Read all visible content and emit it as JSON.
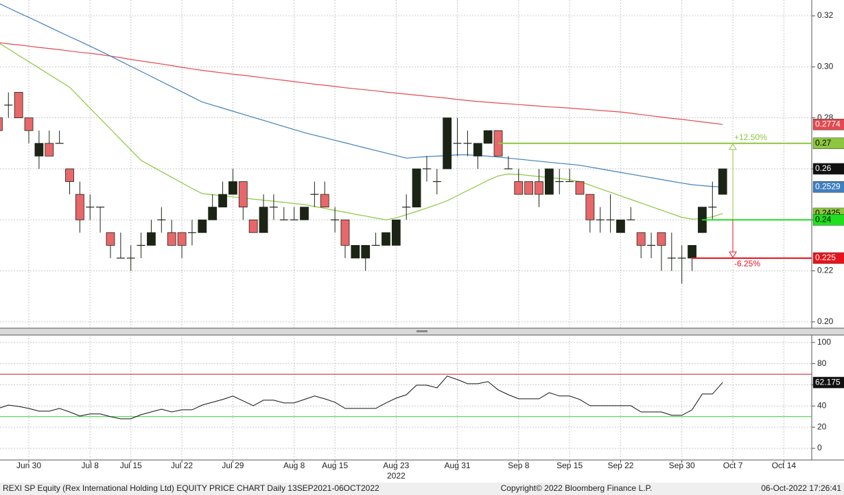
{
  "chart_data": [
    {
      "type": "candlestick",
      "categories": [
        null,
        null,
        null,
        "Jun 30",
        null,
        null,
        null,
        null,
        null,
        "Jul 8",
        null,
        null,
        null,
        "Jul 15",
        null,
        null,
        null,
        null,
        "Jul 22",
        null,
        null,
        null,
        null,
        "Jul 29",
        null,
        null,
        null,
        null,
        null,
        "Aug 8",
        null,
        null,
        null,
        "Aug 15",
        null,
        null,
        null,
        null,
        null,
        "Aug 23",
        null,
        null,
        null,
        null,
        null,
        "Aug 31",
        null,
        null,
        null,
        null,
        null,
        "Sep 8",
        null,
        null,
        null,
        null,
        "Sep 15",
        null,
        null,
        null,
        null,
        "Sep 22",
        null,
        null,
        null,
        null,
        null,
        "Sep 30",
        null,
        null,
        null,
        null,
        "Oct 7",
        null,
        null,
        null,
        null,
        "Oct 14"
      ],
      "x_sublabel": "2022",
      "open": [
        0.28,
        0.285,
        0.29,
        0.28,
        0.265,
        0.27,
        0.27,
        0.26,
        0.25,
        0.245,
        0.245,
        0.235,
        0.225,
        0.225,
        0.23,
        0.23,
        0.24,
        0.235,
        0.235,
        0.235,
        0.235,
        0.24,
        0.245,
        0.25,
        0.255,
        0.24,
        0.235,
        0.245,
        0.24,
        0.24,
        0.24,
        0.25,
        0.25,
        0.24,
        0.24,
        0.225,
        0.225,
        0.23,
        0.23,
        0.23,
        0.245,
        0.245,
        0.26,
        0.255,
        0.26,
        0.27,
        0.27,
        0.265,
        0.27,
        0.275,
        0.26,
        0.255,
        0.255,
        0.255,
        0.25,
        0.255,
        0.255,
        0.255,
        0.25,
        0.24,
        0.24,
        0.235,
        0.24,
        0.235,
        0.23,
        0.235,
        0.225,
        0.225,
        0.225,
        0.235,
        0.245,
        0.25,
        null,
        null,
        null,
        null,
        null,
        null
      ],
      "high": [
        0.28,
        0.29,
        0.29,
        0.28,
        0.275,
        0.275,
        0.275,
        0.26,
        0.255,
        0.25,
        0.245,
        0.235,
        0.235,
        0.23,
        0.235,
        0.24,
        0.245,
        0.24,
        0.235,
        0.24,
        0.24,
        0.25,
        0.255,
        0.26,
        0.255,
        0.24,
        0.25,
        0.25,
        0.245,
        0.245,
        0.245,
        0.255,
        0.255,
        0.245,
        0.24,
        0.23,
        0.23,
        0.235,
        0.235,
        0.24,
        0.25,
        0.26,
        0.265,
        0.26,
        0.28,
        0.28,
        0.275,
        0.27,
        0.275,
        0.275,
        0.265,
        0.26,
        0.255,
        0.26,
        0.26,
        0.26,
        0.26,
        0.255,
        0.25,
        0.245,
        0.25,
        0.24,
        0.245,
        0.235,
        0.235,
        0.235,
        0.235,
        0.23,
        0.23,
        0.245,
        0.255,
        0.26,
        null,
        null,
        null,
        null,
        null,
        null
      ],
      "low": [
        0.275,
        0.28,
        0.28,
        0.27,
        0.26,
        0.265,
        0.27,
        0.25,
        0.235,
        0.24,
        0.235,
        0.225,
        0.225,
        0.22,
        0.225,
        0.23,
        0.235,
        0.23,
        0.225,
        0.23,
        0.235,
        0.24,
        0.245,
        0.25,
        0.24,
        0.235,
        0.235,
        0.24,
        0.24,
        0.24,
        0.24,
        0.245,
        0.245,
        0.235,
        0.225,
        0.225,
        0.22,
        0.23,
        0.23,
        0.23,
        0.24,
        0.245,
        0.255,
        0.25,
        0.26,
        0.265,
        0.265,
        0.26,
        0.27,
        0.265,
        0.26,
        0.25,
        0.25,
        0.245,
        0.25,
        0.25,
        0.255,
        0.25,
        0.235,
        0.235,
        0.235,
        0.235,
        0.24,
        0.225,
        0.225,
        0.22,
        0.22,
        0.215,
        0.22,
        0.235,
        0.24,
        0.25,
        null,
        null,
        null,
        null,
        null,
        null
      ],
      "close": [
        0.275,
        0.285,
        0.28,
        0.275,
        0.27,
        0.265,
        0.27,
        0.255,
        0.24,
        0.245,
        0.245,
        0.23,
        0.225,
        0.225,
        0.23,
        0.235,
        0.24,
        0.23,
        0.23,
        0.235,
        0.24,
        0.245,
        0.25,
        0.255,
        0.245,
        0.235,
        0.245,
        0.245,
        0.24,
        0.24,
        0.245,
        0.25,
        0.245,
        0.24,
        0.23,
        0.23,
        0.23,
        0.23,
        0.235,
        0.24,
        0.245,
        0.26,
        0.26,
        0.255,
        0.28,
        0.27,
        0.27,
        0.27,
        0.275,
        0.265,
        0.26,
        0.25,
        0.25,
        0.25,
        0.26,
        0.255,
        0.255,
        0.25,
        0.24,
        0.24,
        0.24,
        0.24,
        0.24,
        0.23,
        0.23,
        0.23,
        0.225,
        0.225,
        0.23,
        0.245,
        0.245,
        0.26,
        null,
        null,
        null,
        null,
        null,
        null
      ],
      "up_color": "#1c2416",
      "down_color": "#e8676a",
      "series": [
        {
          "color": "#e34a50",
          "values": [
            0.3095,
            0.309,
            0.3086,
            0.3081,
            0.3076,
            0.3072,
            0.3067,
            0.3062,
            0.3057,
            0.3053,
            0.3048,
            0.3042,
            0.3036,
            0.3029,
            0.3023,
            0.3017,
            0.3011,
            0.3005,
            0.2998,
            0.2992,
            0.2986,
            0.2981,
            0.2976,
            0.2971,
            0.2967,
            0.2962,
            0.2957,
            0.2952,
            0.2947,
            0.2942,
            0.2937,
            0.2932,
            0.2928,
            0.2923,
            0.2918,
            0.2914,
            0.291,
            0.2906,
            0.2901,
            0.2897,
            0.2893,
            0.2889,
            0.2885,
            0.2881,
            0.2877,
            0.2872,
            0.2868,
            0.2864,
            0.2861,
            0.2858,
            0.2855,
            0.2852,
            0.2849,
            0.2846,
            0.2843,
            0.2841,
            0.2838,
            0.2835,
            0.2832,
            0.2829,
            0.2826,
            0.2823,
            0.2818,
            0.2813,
            0.2808,
            0.2803,
            0.2798,
            0.2794,
            0.2789,
            0.2784,
            0.2779,
            0.2774,
            null,
            null,
            null,
            null,
            null,
            null
          ],
          "label_text_color": "#ffffff"
        },
        {
          "color": "#3f7fbf",
          "values": [
            0.325,
            0.3231,
            0.3212,
            0.3194,
            0.3175,
            0.3156,
            0.3137,
            0.3118,
            0.31,
            0.3081,
            0.3062,
            0.3042,
            0.3022,
            0.3002,
            0.2982,
            0.2962,
            0.2942,
            0.2922,
            0.2902,
            0.2882,
            0.2862,
            0.285,
            0.2838,
            0.2826,
            0.2814,
            0.2802,
            0.279,
            0.2778,
            0.2766,
            0.2754,
            0.2742,
            0.2732,
            0.2722,
            0.2712,
            0.2702,
            0.2692,
            0.2682,
            0.2672,
            0.2662,
            0.2652,
            0.2642,
            0.2645,
            0.2648,
            0.265,
            0.2652,
            0.2655,
            0.2655,
            0.2652,
            0.265,
            0.2646,
            0.2642,
            0.2638,
            0.2634,
            0.263,
            0.2626,
            0.2622,
            0.2618,
            0.2614,
            0.2607,
            0.26,
            0.2593,
            0.2586,
            0.2579,
            0.2572,
            0.2565,
            0.2558,
            0.2551,
            0.2544,
            0.2538,
            0.2534,
            0.2531,
            0.2529,
            null,
            null,
            null,
            null,
            null,
            null
          ],
          "label_text_color": "#ffffff"
        },
        {
          "color": "#8dc63f",
          "values": [
            0.3095,
            0.307,
            0.3045,
            0.302,
            0.2995,
            0.297,
            0.2945,
            0.292,
            0.2879,
            0.2838,
            0.2797,
            0.2756,
            0.2715,
            0.2674,
            0.2633,
            0.2611,
            0.2589,
            0.2567,
            0.2545,
            0.2523,
            0.2503,
            0.2499,
            0.2494,
            0.249,
            0.2486,
            0.2481,
            0.2477,
            0.2473,
            0.2469,
            0.2464,
            0.246,
            0.2452,
            0.2445,
            0.2437,
            0.243,
            0.2422,
            0.2415,
            0.2407,
            0.24,
            0.2408,
            0.242,
            0.2433,
            0.2446,
            0.246,
            0.2475,
            0.2495,
            0.2515,
            0.2535,
            0.2555,
            0.2572,
            0.258,
            0.2578,
            0.2574,
            0.257,
            0.2566,
            0.2562,
            0.2557,
            0.255,
            0.2536,
            0.2522,
            0.2508,
            0.2494,
            0.248,
            0.2466,
            0.2452,
            0.2438,
            0.2424,
            0.241,
            0.2403,
            0.2405,
            0.2412,
            0.2425,
            null,
            null,
            null,
            null,
            null,
            null
          ],
          "label_text_color": "#000000"
        }
      ],
      "levels": [
        {
          "value": 0.27,
          "color": "#8dc63f",
          "label": "+12.50%",
          "label_text_color": "#000000"
        },
        {
          "value": 0.24,
          "color": "#1ee01e",
          "label_text_color": "#000000"
        },
        {
          "value": 0.225,
          "color": "#e8141b",
          "label": "-6.25%",
          "label_text_color": "#ffffff"
        }
      ],
      "ylim": [
        0.1978,
        0.3262
      ],
      "yticks": [
        {
          "value": 0.2,
          "label": "0.20"
        },
        0.22,
        0.24,
        0.26,
        0.28,
        {
          "value": 0.3,
          "label": "0.30"
        },
        0.32
      ],
      "grid": true
    },
    {
      "type": "line",
      "color": "#111111",
      "values": [
        37.7,
        40.9,
        39.6,
        37.7,
        35.1,
        35.1,
        37.7,
        34.4,
        30.5,
        32.5,
        32.5,
        29.9,
        27.9,
        27.9,
        31.8,
        34.4,
        37.0,
        34.4,
        36.4,
        36.4,
        40.9,
        43.5,
        46.1,
        49.4,
        44.8,
        40.3,
        45.5,
        45.5,
        42.9,
        42.9,
        46.1,
        49.4,
        46.8,
        43.5,
        37.7,
        37.7,
        37.7,
        37.7,
        42.9,
        47.4,
        50.6,
        59.7,
        59.7,
        57.1,
        68.2,
        64.9,
        61.0,
        61.0,
        63.0,
        55.2,
        50.6,
        46.8,
        46.8,
        46.8,
        52.6,
        49.4,
        49.4,
        46.1,
        40.3,
        40.3,
        40.3,
        40.3,
        40.3,
        34.4,
        34.4,
        34.4,
        31.2,
        31.2,
        36.4,
        51.3,
        51.3,
        62.175,
        null,
        null,
        null,
        null,
        null,
        null
      ],
      "hlines": [
        {
          "value": 70,
          "color": "#c8161d"
        },
        {
          "value": 30,
          "color": "#33cc33"
        }
      ],
      "ylim": [
        -11,
        107
      ],
      "yticks": [
        0,
        20,
        40,
        60,
        80,
        100
      ],
      "grid": true
    }
  ],
  "footer": {
    "left": "REXI SP Equity (Rex International Holding Ltd) EQUITY PRICE CHART  Daily 13SEP2021-06OCT2022",
    "center": "Copyright© 2022 Bloomberg Finance L.P.",
    "right": "06-Oct-2022 17:26:41"
  }
}
